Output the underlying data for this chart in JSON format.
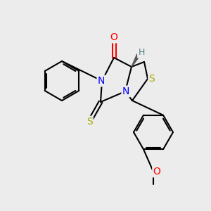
{
  "background_color": "#ececec",
  "bond_color": "#000000",
  "bond_width": 1.5,
  "atom_colors": {
    "O": "#ff0000",
    "N": "#0000ff",
    "S_thio": "#aaaa00",
    "S_ring": "#aaaa00",
    "H": "#4a8080",
    "C": "#000000"
  },
  "font_size_atom": 9,
  "font_size_label": 8
}
